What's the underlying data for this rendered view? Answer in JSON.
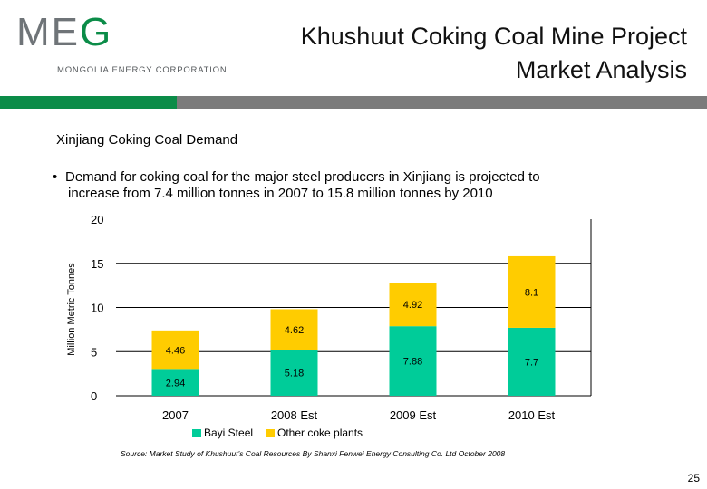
{
  "header": {
    "logo_text": "MEG",
    "logo_subtitle": "MONGOLIA ENERGY CORPORATION",
    "title_line1": "Khushuut Coking Coal Mine Project",
    "title_line2": "Market Analysis"
  },
  "subtitle": "Xinjiang Coking Coal Demand",
  "bullet": {
    "line1": "Demand for coking coal for the major steel producers in Xinjiang is projected to",
    "line2": "increase from 7.4 million tonnes in 2007 to 15.8 million tonnes by 2010"
  },
  "chart_data": {
    "type": "bar",
    "stacked": true,
    "categories": [
      "2007",
      "2008 Est",
      "2009 Est",
      "2010 Est"
    ],
    "series": [
      {
        "name": "Bayi Steel",
        "color": "#00cc99",
        "values": [
          2.94,
          5.18,
          7.88,
          7.7
        ],
        "labels": [
          "2.94",
          "5.18",
          "7.88",
          "7.7"
        ]
      },
      {
        "name": "Other coke plants",
        "color": "#ffcc00",
        "values": [
          4.46,
          4.62,
          4.92,
          8.1
        ],
        "labels": [
          "4.46",
          "4.62",
          "4.92",
          "8.1"
        ]
      }
    ],
    "ylabel": "Million Metric Tonnes",
    "ylim": [
      0,
      20
    ],
    "yticks": [
      "0",
      "5",
      "10",
      "15",
      "20"
    ],
    "grid": false,
    "legend": "bottom"
  },
  "source": "Source: Market Study of Khushuut’s Coal Resources By Shanxi Fenwei Energy Consulting Co. Ltd October 2008",
  "page_number": "25"
}
